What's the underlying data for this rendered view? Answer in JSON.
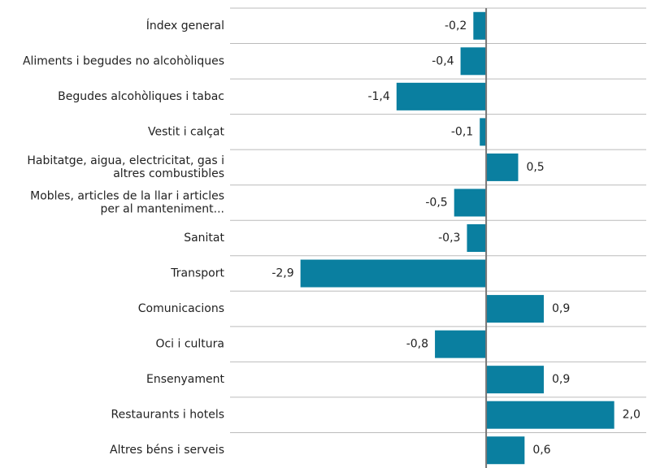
{
  "chart_data": {
    "type": "barh",
    "categories": [
      "Índex general",
      "Aliments i begudes no alcohòliques",
      "Begudes alcohòliques i tabac",
      "Vestit i calçat",
      "Habitatge, aigua, electricitat, gas i\naltres combustibles",
      "Mobles, articles de la llar i articles\nper al manteniment...",
      "Sanitat",
      "Transport",
      "Comunicacions",
      "Oci i cultura",
      "Ensenyament",
      "Restaurants i hotels",
      "Altres béns i serveis"
    ],
    "values": [
      -0.2,
      -0.4,
      -1.4,
      -0.1,
      0.5,
      -0.5,
      -0.3,
      -2.9,
      0.9,
      -0.8,
      0.9,
      2.0,
      0.6
    ],
    "value_labels": [
      "-0,2",
      "-0,4",
      "-1,4",
      "-0,1",
      "0,5",
      "-0,5",
      "-0,3",
      "-2,9",
      "0,9",
      "-0,8",
      "0,9",
      "2,0",
      "0,6"
    ],
    "color": "#0a7fa0",
    "xlim": [
      -4,
      2.5
    ]
  }
}
